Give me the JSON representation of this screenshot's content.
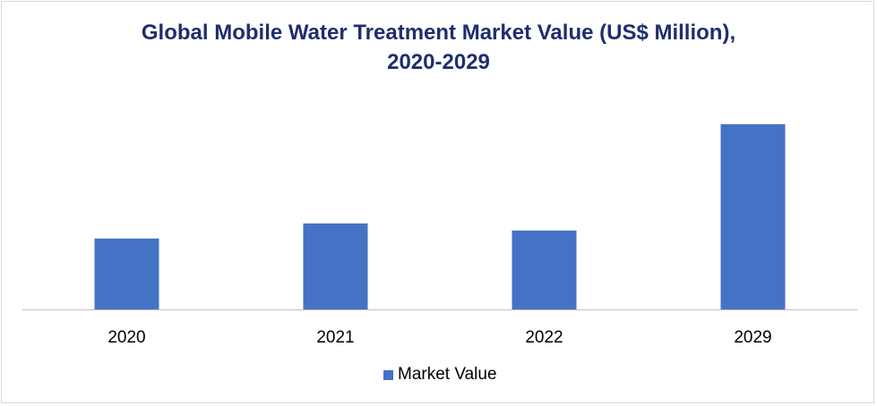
{
  "chart_data": {
    "type": "bar",
    "title": "Global Mobile Water Treatment Market Value (US$ Million),",
    "subtitle": "2020-2029",
    "categories": [
      "2020",
      "2021",
      "2022",
      "2029"
    ],
    "series": [
      {
        "name": "Market Value",
        "color": "#4472c4",
        "values": [
          80,
          97,
          89,
          209
        ]
      }
    ],
    "xlabel": "",
    "ylabel": "",
    "ylim": [
      0,
      230
    ],
    "grid": false,
    "legend_position": "bottom"
  }
}
